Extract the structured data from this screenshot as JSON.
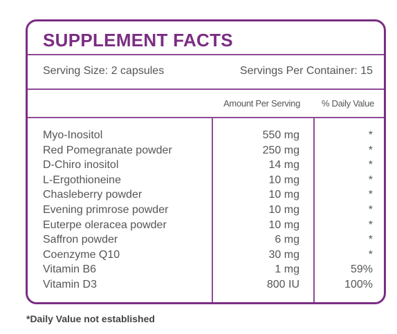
{
  "header": {
    "title": "SUPPLEMENT FACTS"
  },
  "serving": {
    "size": "Serving Size: 2 capsules",
    "per_container": "Servings Per Container: 15"
  },
  "table": {
    "columns": [
      "Amount Per Serving",
      "% Daily Value"
    ],
    "rows": [
      [
        "Myo-Inositol",
        "550 mg",
        "*"
      ],
      [
        "Red Pomegranate powder",
        "250 mg",
        "*"
      ],
      [
        "D-Chiro inositol",
        "14 mg",
        "*"
      ],
      [
        "L-Ergothioneine",
        "10 mg",
        "*"
      ],
      [
        "Chasleberry powder",
        "10 mg",
        "*"
      ],
      [
        "Evening primrose powder",
        "10 mg",
        "*"
      ],
      [
        "Euterpe oleracea powder",
        "10 mg",
        "*"
      ],
      [
        "Saffron powder",
        "6 mg",
        "*"
      ],
      [
        "Coenzyme Q10",
        "30 mg",
        "*"
      ],
      [
        "Vitamin B6",
        "1 mg",
        "59%"
      ],
      [
        "Vitamin D3",
        "800 IU",
        "100%"
      ]
    ]
  },
  "footnote": "*Daily Value not established"
}
